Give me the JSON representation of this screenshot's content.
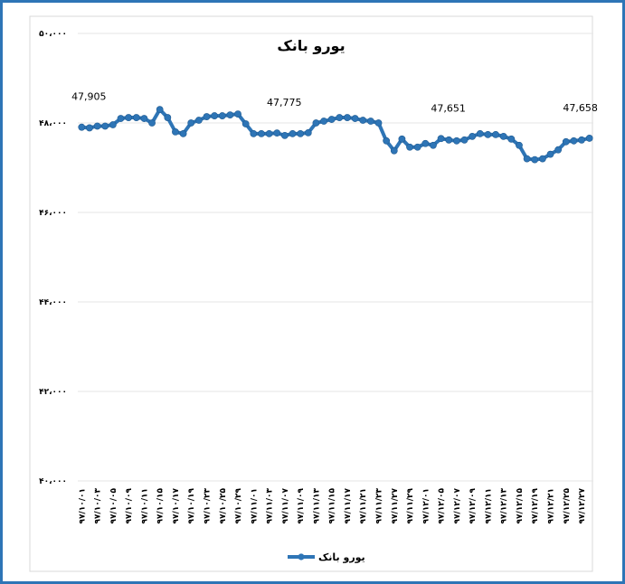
{
  "chart_data": {
    "type": "line",
    "title": "یورو بانک",
    "categories": [
      "۹۷/۱۰/۰۱",
      null,
      "۹۷/۱۰/۰۳",
      null,
      "۹۷/۱۰/۰۵",
      null,
      "۹۷/۱۰/۰۹",
      null,
      "۹۷/۱۰/۱۱",
      null,
      "۹۷/۱۰/۱۵",
      null,
      "۹۷/۱۰/۱۷",
      null,
      "۹۷/۱۰/۱۹",
      null,
      "۹۷/۱۰/۲۳",
      null,
      "۹۷/۱۰/۲۵",
      null,
      "۹۷/۱۰/۲۹",
      null,
      "۹۷/۱۱/۰۱",
      null,
      "۹۷/۱۱/۰۳",
      null,
      "۹۷/۱۱/۰۷",
      null,
      "۹۷/۱۱/۰۹",
      null,
      "۹۷/۱۱/۱۳",
      null,
      "۹۷/۱۱/۱۵",
      null,
      "۹۷/۱۱/۱۷",
      null,
      "۹۷/۱۱/۲۱",
      null,
      "۹۷/۱۱/۲۳",
      null,
      "۹۷/۱۱/۲۷",
      null,
      "۹۷/۱۱/۲۹",
      null,
      "۹۷/۱۲/۰۱",
      null,
      "۹۷/۱۲/۰۵",
      null,
      "۹۷/۱۲/۰۷",
      null,
      "۹۷/۱۲/۰۹",
      null,
      "۹۷/۱۲/۱۱",
      null,
      "۹۷/۱۲/۱۳",
      null,
      "۹۷/۱۲/۱۵",
      null,
      "۹۷/۱۲/۱۹",
      null,
      "۹۷/۱۲/۲۱",
      null,
      "۹۷/۱۲/۲۵",
      null,
      "۹۷/۱۲/۲۷",
      null
    ],
    "series": [
      {
        "name": "یورو بانک",
        "color": "#2e75b6",
        "values": [
          47905,
          47890,
          47930,
          47930,
          47960,
          48100,
          48120,
          48120,
          48100,
          48000,
          48300,
          48120,
          47800,
          47760,
          48000,
          48060,
          48140,
          48160,
          48160,
          48180,
          48200,
          47980,
          47760,
          47760,
          47760,
          47775,
          47720,
          47760,
          47760,
          47780,
          48000,
          48040,
          48080,
          48120,
          48120,
          48100,
          48060,
          48040,
          48000,
          47600,
          47380,
          47640,
          47460,
          47460,
          47540,
          47500,
          47651,
          47620,
          47600,
          47620,
          47700,
          47760,
          47740,
          47740,
          47700,
          47640,
          47500,
          47200,
          47180,
          47200,
          47300,
          47400,
          47580,
          47600,
          47620,
          47658
        ],
        "value_labels": [
          "47,905",
          null,
          null,
          null,
          null,
          null,
          null,
          null,
          null,
          null,
          null,
          null,
          null,
          null,
          null,
          null,
          null,
          null,
          null,
          null,
          null,
          null,
          null,
          null,
          null,
          "47,775",
          null,
          null,
          null,
          null,
          null,
          null,
          null,
          null,
          null,
          null,
          null,
          null,
          null,
          null,
          null,
          null,
          null,
          null,
          null,
          null,
          "47,651",
          null,
          null,
          null,
          null,
          null,
          null,
          null,
          null,
          null,
          null,
          null,
          null,
          null,
          null,
          null,
          null,
          null,
          null,
          "47,658"
        ]
      }
    ],
    "ylim": [
      40000,
      50000
    ],
    "yticks": [
      {
        "value": 40000,
        "label": "۴۰،۰۰۰"
      },
      {
        "value": 42000,
        "label": "۴۲،۰۰۰"
      },
      {
        "value": 44000,
        "label": "۴۴،۰۰۰"
      },
      {
        "value": 46000,
        "label": "۴۶،۰۰۰"
      },
      {
        "value": 48000,
        "label": "۴۸،۰۰۰"
      },
      {
        "value": 50000,
        "label": "۵۰،۰۰۰"
      }
    ],
    "grid": true,
    "legend": "bottom"
  }
}
